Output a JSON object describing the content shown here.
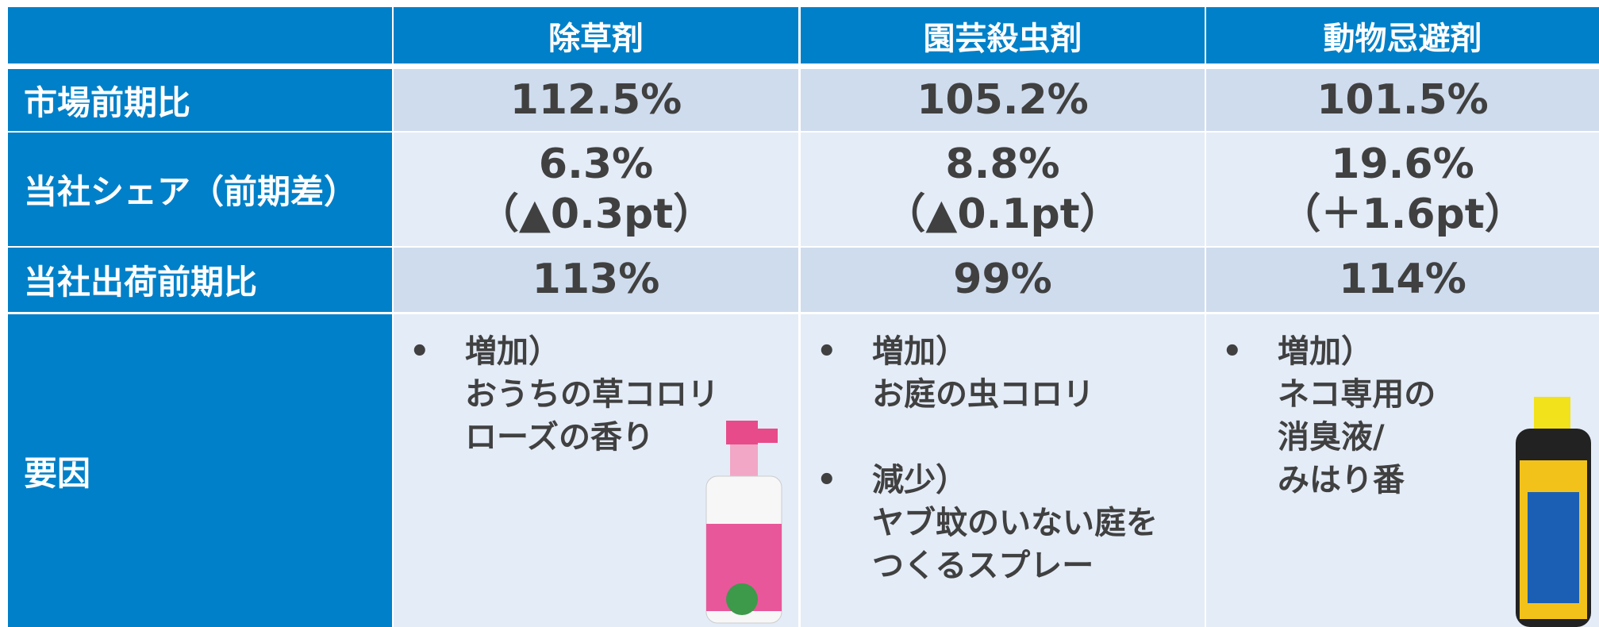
{
  "table": {
    "header": [
      "除草剤",
      "園芸殺虫剤",
      "動物忌避剤"
    ],
    "rows": [
      {
        "label": "市場前期比",
        "cells": [
          [
            "112.5%"
          ],
          [
            "105.2%"
          ],
          [
            "101.5%"
          ]
        ]
      },
      {
        "label": "当社シェア（前期差）",
        "cells": [
          [
            "6.3%",
            "（▲0.3pt）"
          ],
          [
            "8.8%",
            "（▲0.1pt）"
          ],
          [
            "19.6%",
            "（＋1.6pt）"
          ]
        ]
      },
      {
        "label": "当社出荷前期比",
        "cells": [
          [
            "113%"
          ],
          [
            "99%"
          ],
          [
            "114%"
          ]
        ]
      }
    ],
    "factors": {
      "label": "要因",
      "cells": [
        [
          [
            "増加）",
            "おうちの草コロリ",
            "ローズの香り"
          ]
        ],
        [
          [
            "増加）",
            "お庭の虫コロリ"
          ],
          [
            "減少）",
            "ヤブ蚊のいない庭を",
            "つくるスプレー"
          ]
        ],
        [
          [
            "増加）",
            "ネコ専用の",
            "消臭液/",
            "みはり番"
          ]
        ]
      ]
    }
  }
}
